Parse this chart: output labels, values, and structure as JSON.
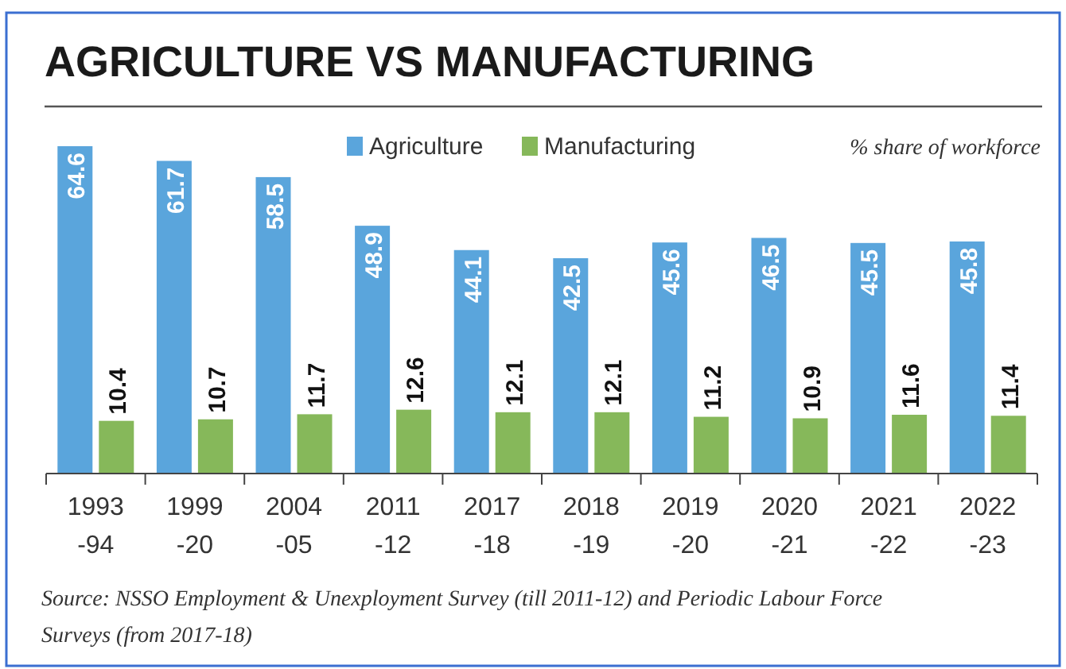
{
  "chart_data": {
    "type": "bar",
    "title": "AGRICULTURE VS MANUFACTURING",
    "subtitle": "% share of workforce",
    "categories": [
      "1993\n-94",
      "1999\n-20",
      "2004\n-05",
      "2011\n-12",
      "2017\n-18",
      "2018\n-19",
      "2019\n-20",
      "2020\n-21",
      "2021\n-22",
      "2022\n-23"
    ],
    "series": [
      {
        "name": "Agriculture",
        "color": "#5aa5dc",
        "values": [
          64.6,
          61.7,
          58.5,
          48.9,
          44.1,
          42.5,
          45.6,
          46.5,
          45.5,
          45.8
        ]
      },
      {
        "name": "Manufacturing",
        "color": "#86b85a",
        "values": [
          10.4,
          10.7,
          11.7,
          12.6,
          12.1,
          12.1,
          11.2,
          10.9,
          11.6,
          11.4
        ]
      }
    ],
    "data_labels": true,
    "legend": "top",
    "annotations": [
      "Source: NSSO Employment & Unexployment Survey (till 2011-12) and Periodic Labour Force Surveys (from 2017-18)"
    ]
  }
}
